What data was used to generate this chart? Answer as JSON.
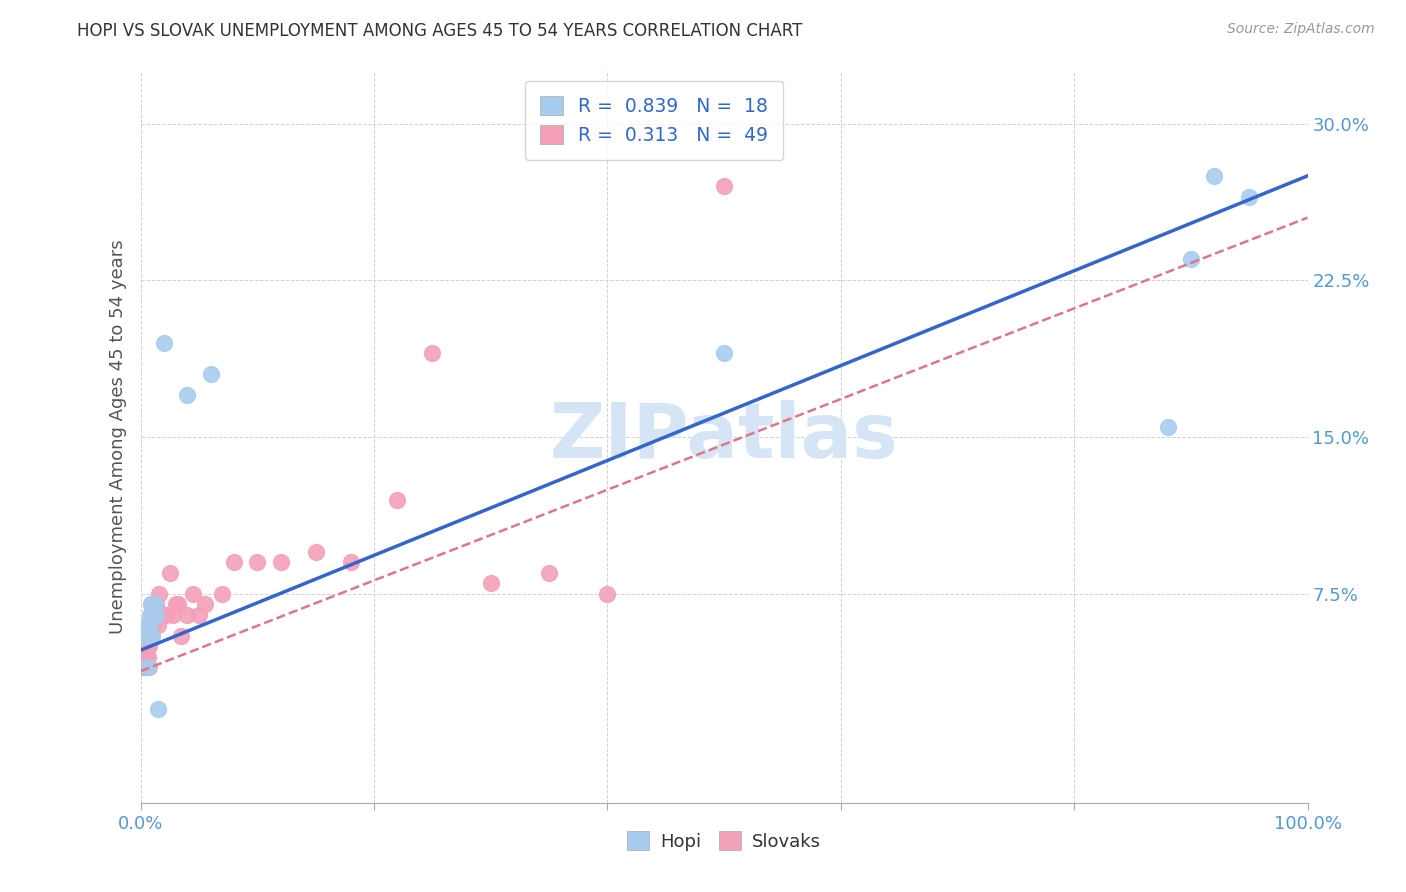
{
  "title": "HOPI VS SLOVAK UNEMPLOYMENT AMONG AGES 45 TO 54 YEARS CORRELATION CHART",
  "source": "Source: ZipAtlas.com",
  "ylabel": "Unemployment Among Ages 45 to 54 years",
  "xlim": [
    0,
    1.0
  ],
  "ylim": [
    -0.025,
    0.325
  ],
  "yticks": [
    0.075,
    0.15,
    0.225,
    0.3
  ],
  "ytick_labels": [
    "7.5%",
    "15.0%",
    "22.5%",
    "30.0%"
  ],
  "xticks": [
    0.0,
    0.2,
    0.4,
    0.6,
    0.8,
    1.0
  ],
  "xtick_labels": [
    "0.0%",
    "",
    "",
    "",
    "",
    "100.0%"
  ],
  "hopi_color": "#A8CCEE",
  "slovak_color": "#F4A0B8",
  "hopi_line_color": "#3366CC",
  "slovak_line_color": "#DD7788",
  "text_blue": "#3366CC",
  "hopi_R": 0.839,
  "hopi_N": 18,
  "slovak_R": 0.313,
  "slovak_N": 49,
  "hopi_x": [
    0.002,
    0.005,
    0.006,
    0.007,
    0.008,
    0.009,
    0.01,
    0.012,
    0.013,
    0.015,
    0.02,
    0.04,
    0.06,
    0.5,
    0.88,
    0.9,
    0.92,
    0.95
  ],
  "hopi_y": [
    0.055,
    0.06,
    0.04,
    0.06,
    0.065,
    0.07,
    0.055,
    0.07,
    0.065,
    0.02,
    0.195,
    0.17,
    0.18,
    0.19,
    0.155,
    0.235,
    0.275,
    0.265
  ],
  "slovak_x": [
    0.002,
    0.003,
    0.003,
    0.004,
    0.004,
    0.005,
    0.005,
    0.005,
    0.006,
    0.006,
    0.007,
    0.007,
    0.007,
    0.008,
    0.008,
    0.009,
    0.009,
    0.01,
    0.01,
    0.011,
    0.012,
    0.013,
    0.015,
    0.015,
    0.016,
    0.018,
    0.02,
    0.022,
    0.025,
    0.028,
    0.03,
    0.032,
    0.035,
    0.04,
    0.045,
    0.05,
    0.055,
    0.07,
    0.08,
    0.1,
    0.12,
    0.15,
    0.18,
    0.22,
    0.25,
    0.3,
    0.35,
    0.4,
    0.5
  ],
  "slovak_y": [
    0.04,
    0.05,
    0.045,
    0.04,
    0.05,
    0.045,
    0.05,
    0.055,
    0.045,
    0.05,
    0.05,
    0.055,
    0.04,
    0.055,
    0.06,
    0.065,
    0.07,
    0.065,
    0.07,
    0.06,
    0.065,
    0.07,
    0.06,
    0.065,
    0.075,
    0.065,
    0.065,
    0.065,
    0.085,
    0.065,
    0.07,
    0.07,
    0.055,
    0.065,
    0.075,
    0.065,
    0.07,
    0.075,
    0.09,
    0.09,
    0.09,
    0.095,
    0.09,
    0.12,
    0.19,
    0.08,
    0.085,
    0.075,
    0.27
  ],
  "hopi_trend_start_y": 0.048,
  "hopi_trend_end_y": 0.275,
  "slovak_trend_start_y": 0.038,
  "slovak_trend_end_y": 0.255,
  "background_color": "#ffffff",
  "grid_color": "#cccccc",
  "title_color": "#333333",
  "axis_label_color": "#555555",
  "tick_color": "#5599CC",
  "watermark": "ZIPatlas",
  "watermark_color": "#D5E5F5"
}
